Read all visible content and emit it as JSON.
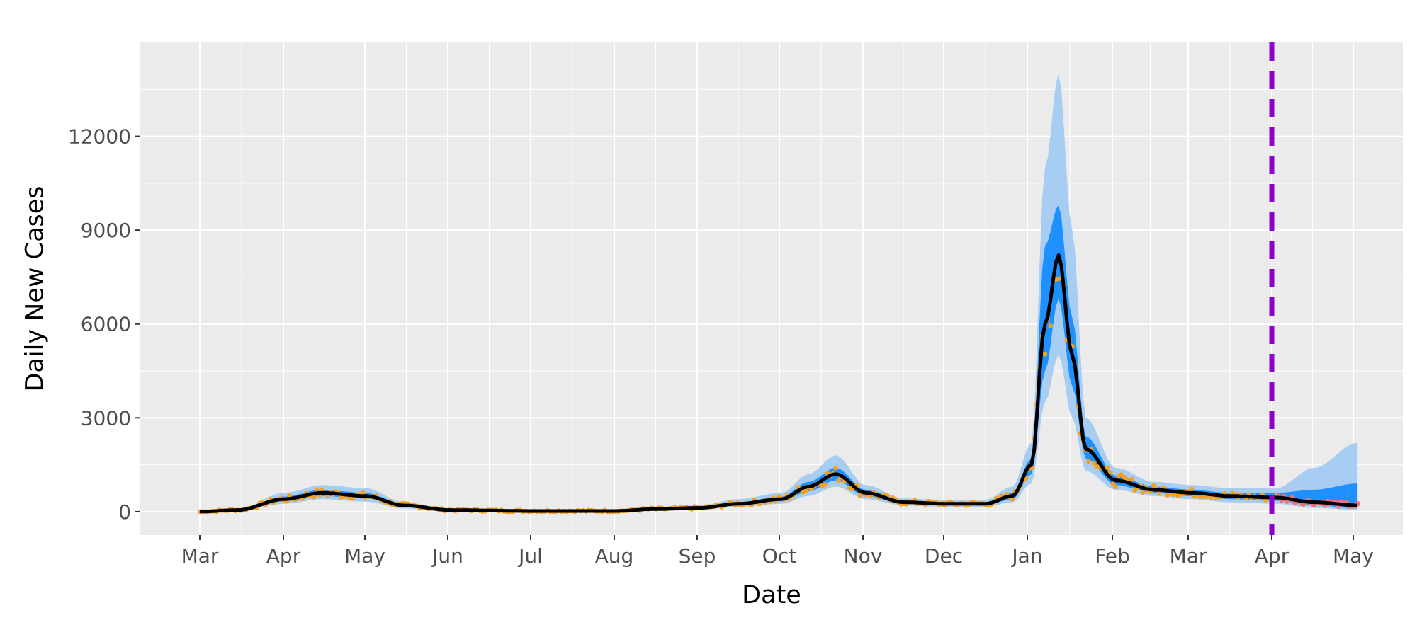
{
  "chart_data": {
    "type": "line",
    "title": "",
    "xlabel": "Date",
    "ylabel": "Daily New Cases",
    "x_ticks": [
      "Mar",
      "Apr",
      "May",
      "Jun",
      "Jul",
      "Aug",
      "Sep",
      "Oct",
      "Nov",
      "Dec",
      "Jan",
      "Feb",
      "Mar",
      "Apr",
      "May"
    ],
    "y_ticks": [
      "0",
      "3000",
      "6000",
      "9000",
      "12000"
    ],
    "ylim": [
      -750,
      15000
    ],
    "grid": true,
    "forecast_start": "Apr",
    "colors": {
      "panel": "#ebebeb",
      "grid": "#ffffff",
      "outer_band": "#a8cdf2",
      "inner_band": "#1e90ff",
      "fit_line": "#000000",
      "observed": "#f4a11f",
      "holdout": "#f37272",
      "forecast_marker": "#8b00cc"
    },
    "series": [
      {
        "role": "fit-median",
        "x": [
          "Mar",
          "Mar 15",
          "Apr",
          "Apr 15",
          "May",
          "May 15",
          "Jun",
          "Jul",
          "Aug",
          "Aug 15",
          "Sep",
          "Sep 15",
          "Oct",
          "Oct 10",
          "Oct 20",
          "Nov",
          "Nov 15",
          "Dec",
          "Dec 15",
          "Dec 25",
          "Jan",
          "Jan 5",
          "Jan 10",
          "Jan 15",
          "Jan 20",
          "Feb",
          "Feb 15",
          "Mar",
          "Mar 15",
          "Apr",
          "Apr 15",
          "May"
        ],
        "values": [
          0,
          50,
          400,
          600,
          500,
          200,
          50,
          20,
          20,
          80,
          120,
          250,
          400,
          800,
          1200,
          600,
          300,
          250,
          250,
          500,
          1500,
          6000,
          8200,
          5000,
          2000,
          1000,
          700,
          600,
          500,
          450,
          300,
          200
        ]
      },
      {
        "role": "inner-interval-upper",
        "values": [
          0,
          60,
          480,
          700,
          600,
          250,
          60,
          25,
          25,
          100,
          150,
          300,
          480,
          950,
          1400,
          700,
          350,
          300,
          300,
          600,
          1700,
          8500,
          9800,
          6200,
          2400,
          1150,
          800,
          700,
          600,
          600,
          700,
          900
        ]
      },
      {
        "role": "inner-interval-lower",
        "values": [
          0,
          40,
          330,
          500,
          420,
          160,
          40,
          15,
          15,
          60,
          100,
          200,
          330,
          650,
          1000,
          500,
          250,
          200,
          200,
          400,
          1200,
          4500,
          6800,
          4000,
          1700,
          850,
          600,
          500,
          400,
          350,
          200,
          100
        ]
      },
      {
        "role": "outer-interval-upper",
        "values": [
          0,
          80,
          600,
          850,
          750,
          300,
          80,
          30,
          30,
          130,
          200,
          400,
          600,
          1200,
          1800,
          850,
          420,
          380,
          380,
          800,
          2200,
          11000,
          14000,
          9000,
          3000,
          1400,
          950,
          850,
          750,
          750,
          1400,
          2200
        ]
      },
      {
        "role": "outer-interval-lower",
        "values": [
          0,
          20,
          250,
          400,
          320,
          100,
          20,
          5,
          5,
          40,
          60,
          150,
          250,
          500,
          800,
          400,
          200,
          150,
          150,
          300,
          900,
          3500,
          5000,
          3000,
          1300,
          700,
          500,
          400,
          300,
          250,
          120,
          50
        ]
      },
      {
        "role": "observed",
        "note_points": "daily reported cases, shown as orange dots up to the dashed line"
      },
      {
        "role": "holdout",
        "note_points": "reported cases after the dashed line, shown as red dots, ~400"
      }
    ]
  }
}
